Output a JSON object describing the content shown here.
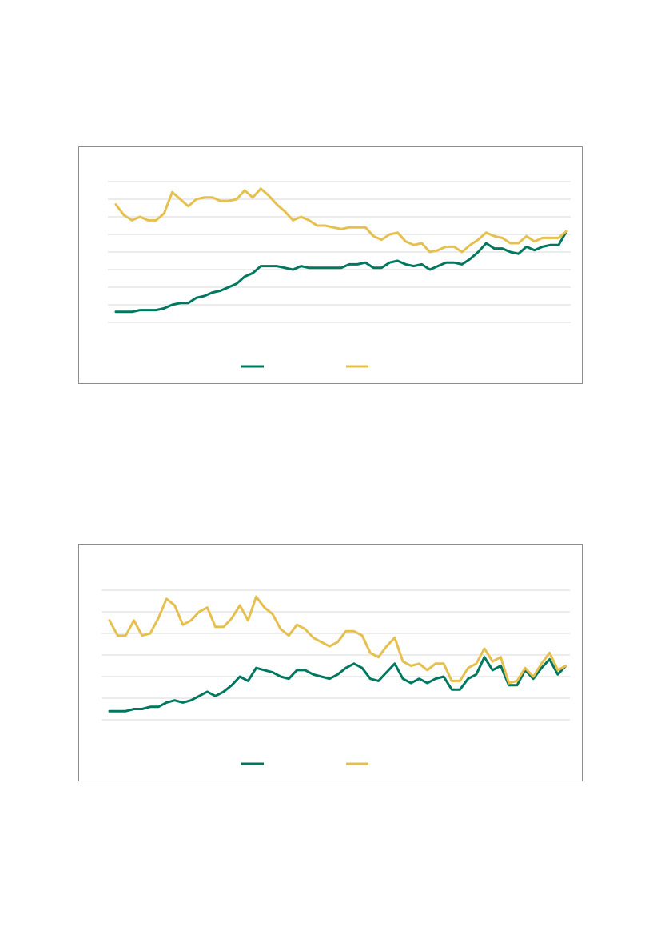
{
  "chart_data": [
    {
      "type": "line",
      "ylim": [
        0,
        8
      ],
      "yticks": [
        0,
        1,
        2,
        3,
        4,
        5,
        6,
        7,
        8
      ],
      "grid": true,
      "tick_labels": false,
      "x": [
        0,
        1,
        2,
        3,
        4,
        5,
        6,
        7,
        8,
        9,
        10,
        11,
        12,
        13,
        14,
        15,
        16,
        17,
        18,
        19,
        20,
        21,
        22,
        23,
        24,
        25,
        26,
        27,
        28,
        29,
        30,
        31,
        32,
        33,
        34,
        35,
        36,
        37,
        38,
        39,
        40,
        41,
        42,
        43,
        44,
        45,
        46,
        47,
        48,
        49,
        50,
        51,
        52,
        53,
        54,
        55,
        56
      ],
      "xlim": [
        0,
        56
      ],
      "series": [
        {
          "color": "#00775f",
          "values": [
            0.6,
            0.6,
            0.6,
            0.7,
            0.7,
            0.7,
            0.8,
            1.0,
            1.1,
            1.1,
            1.4,
            1.5,
            1.7,
            1.8,
            2.0,
            2.2,
            2.6,
            2.8,
            3.2,
            3.2,
            3.2,
            3.1,
            3.0,
            3.2,
            3.1,
            3.1,
            3.1,
            3.1,
            3.1,
            3.3,
            3.3,
            3.4,
            3.1,
            3.1,
            3.4,
            3.5,
            3.3,
            3.2,
            3.3,
            3.0,
            3.2,
            3.4,
            3.4,
            3.3,
            3.6,
            4.0,
            4.5,
            4.2,
            4.2,
            4.0,
            3.9,
            4.3,
            4.1,
            4.3,
            4.4,
            4.4,
            5.2
          ]
        },
        {
          "color": "#e6c04f",
          "values": [
            6.7,
            6.1,
            5.8,
            6.0,
            5.8,
            5.8,
            6.2,
            7.4,
            7.0,
            6.6,
            7.0,
            7.1,
            7.1,
            6.9,
            6.9,
            7.0,
            7.5,
            7.1,
            7.6,
            7.2,
            6.7,
            6.3,
            5.8,
            6.0,
            5.8,
            5.5,
            5.5,
            5.4,
            5.3,
            5.4,
            5.4,
            5.4,
            4.9,
            4.7,
            5.0,
            5.1,
            4.6,
            4.4,
            4.5,
            4.0,
            4.1,
            4.3,
            4.3,
            4.0,
            4.4,
            4.7,
            5.1,
            4.9,
            4.8,
            4.5,
            4.5,
            4.9,
            4.6,
            4.8,
            4.8,
            4.8,
            5.2
          ]
        }
      ]
    },
    {
      "type": "line",
      "ylim": [
        0,
        6
      ],
      "yticks": [
        0,
        1,
        2,
        3,
        4,
        5,
        6
      ],
      "grid": true,
      "tick_labels": false,
      "x": [
        0,
        1,
        2,
        3,
        4,
        5,
        6,
        7,
        8,
        9,
        10,
        11,
        12,
        13,
        14,
        15,
        16,
        17,
        18,
        19,
        20,
        21,
        22,
        23,
        24,
        25,
        26,
        27,
        28,
        29,
        30,
        31,
        32,
        33,
        34,
        35,
        36,
        37,
        38,
        39,
        40,
        41,
        42,
        43,
        44,
        45,
        46,
        47,
        48,
        49,
        50,
        51,
        52,
        53,
        54,
        55,
        56
      ],
      "xlim": [
        0,
        56
      ],
      "series": [
        {
          "color": "#00775f",
          "values": [
            0.4,
            0.4,
            0.4,
            0.5,
            0.5,
            0.6,
            0.6,
            0.8,
            0.9,
            0.8,
            0.9,
            1.1,
            1.3,
            1.1,
            1.3,
            1.6,
            2.0,
            1.8,
            2.4,
            2.3,
            2.2,
            2.0,
            1.9,
            2.3,
            2.3,
            2.1,
            2.0,
            1.9,
            2.1,
            2.4,
            2.6,
            2.4,
            1.9,
            1.8,
            2.2,
            2.6,
            1.9,
            1.7,
            1.9,
            1.7,
            1.9,
            2.0,
            1.4,
            1.4,
            1.9,
            2.1,
            2.9,
            2.3,
            2.5,
            1.6,
            1.6,
            2.3,
            1.9,
            2.4,
            2.8,
            2.1,
            2.5
          ]
        },
        {
          "color": "#e6c04f",
          "values": [
            4.6,
            3.9,
            3.9,
            4.6,
            3.9,
            4.0,
            4.7,
            5.6,
            5.3,
            4.4,
            4.6,
            5.0,
            5.2,
            4.3,
            4.3,
            4.7,
            5.3,
            4.6,
            5.7,
            5.2,
            4.9,
            4.2,
            3.9,
            4.4,
            4.2,
            3.8,
            3.6,
            3.4,
            3.6,
            4.1,
            4.1,
            3.9,
            3.1,
            2.9,
            3.4,
            3.8,
            2.7,
            2.5,
            2.6,
            2.3,
            2.6,
            2.6,
            1.8,
            1.8,
            2.4,
            2.6,
            3.3,
            2.7,
            2.9,
            1.7,
            1.8,
            2.4,
            2.0,
            2.6,
            3.1,
            2.3,
            2.5
          ]
        }
      ]
    }
  ]
}
